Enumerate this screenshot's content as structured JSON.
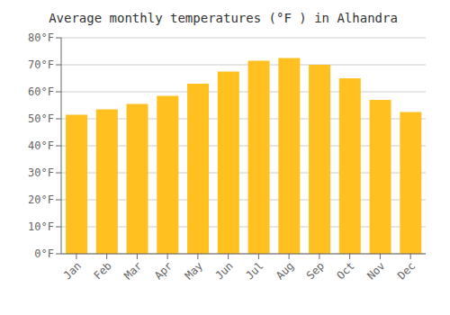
{
  "chart_data": {
    "type": "bar",
    "title": "Average monthly temperatures (°F ) in Alhandra",
    "categories": [
      "Jan",
      "Feb",
      "Mar",
      "Apr",
      "May",
      "Jun",
      "Jul",
      "Aug",
      "Sep",
      "Oct",
      "Nov",
      "Dec"
    ],
    "values": [
      51.5,
      53.5,
      55.5,
      58.5,
      63.0,
      67.5,
      71.5,
      72.5,
      70.0,
      65.0,
      57.0,
      52.5
    ],
    "color": "#FFC020",
    "ylim": [
      0,
      80
    ],
    "yticks": [
      {
        "value": 0,
        "label": "0°F"
      },
      {
        "value": 10,
        "label": "10°F"
      },
      {
        "value": 20,
        "label": "20°F"
      },
      {
        "value": 30,
        "label": "30°F"
      },
      {
        "value": 40,
        "label": "40°F"
      },
      {
        "value": 50,
        "label": "50°F"
      },
      {
        "value": 60,
        "label": "60°F"
      },
      {
        "value": 70,
        "label": "70°F"
      },
      {
        "value": 80,
        "label": "80°F"
      }
    ],
    "grid": true
  }
}
